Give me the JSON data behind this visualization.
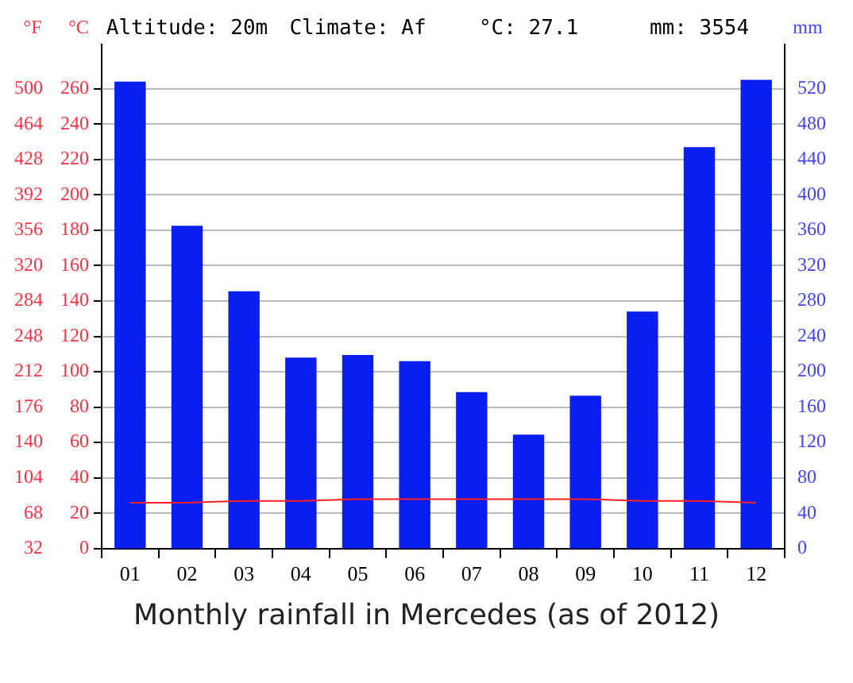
{
  "chart_data": {
    "type": "bar",
    "title": "Monthly rainfall in Mercedes (as of 2012)",
    "ylabel": "°C",
    "y2label": "mm",
    "y3label": "°F",
    "annotations": [
      "Altitude: 20m",
      "Climate: Af",
      "°C: 27.1",
      "mm: 3554"
    ],
    "categories": [
      "01",
      "02",
      "03",
      "04",
      "05",
      "06",
      "07",
      "08",
      "09",
      "10",
      "11",
      "12"
    ],
    "series": [
      {
        "axis": "y2",
        "color": "#0a1ef0",
        "values": [
          528,
          365,
          291,
          216,
          219,
          212,
          177,
          129,
          173,
          268,
          454,
          530
        ]
      },
      {
        "type": "line",
        "axis": "y",
        "color": "#ff2020",
        "values": [
          26,
          26,
          27,
          27,
          28,
          28,
          28,
          28,
          28,
          27,
          27,
          26
        ]
      }
    ],
    "ylim": [
      0,
      285
    ],
    "yticks": [
      0,
      20,
      40,
      60,
      80,
      100,
      120,
      140,
      160,
      180,
      200,
      220,
      240,
      260
    ],
    "y2lim": [
      0,
      570
    ],
    "y2ticks": [
      0,
      40,
      80,
      120,
      160,
      200,
      240,
      280,
      320,
      360,
      400,
      440,
      480,
      520
    ],
    "y3lim": [
      32,
      545
    ],
    "y3ticks": [
      32,
      68,
      104,
      140,
      176,
      212,
      248,
      284,
      320,
      356,
      392,
      428,
      464,
      500
    ],
    "grid": "y",
    "legend": false,
    "marker": "none"
  }
}
